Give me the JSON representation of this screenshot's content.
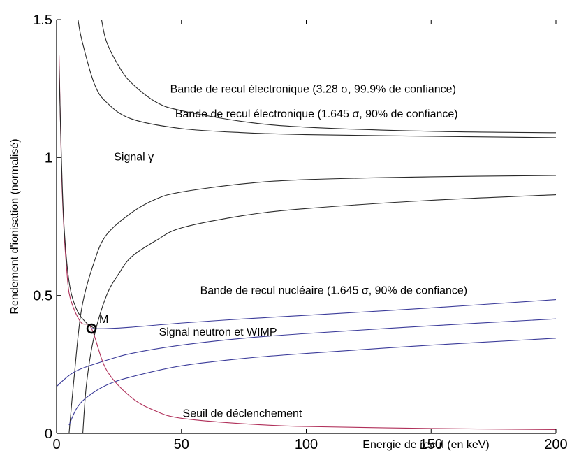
{
  "chart_data": {
    "type": "line",
    "xlabel": "Energie de recul (en keV)",
    "ylabel": "Rendement d'ionisation (normalisé)",
    "xlim": [
      0,
      200
    ],
    "ylim": [
      0,
      1.5
    ],
    "x_ticks": [
      0,
      50,
      100,
      150,
      200
    ],
    "y_ticks": [
      0,
      0.5,
      1,
      1.5
    ],
    "y_tick_labels": [
      "0",
      "0.5",
      "1",
      "1.5"
    ],
    "grid": false,
    "colors": {
      "black": "#2a2a2a",
      "blue": "#3c3c9a",
      "red": "#b0305a"
    },
    "series": [
      {
        "color": "black",
        "points": [
          [
            8.6,
            1.5
          ],
          [
            10,
            1.43
          ],
          [
            15,
            1.27
          ],
          [
            20,
            1.2
          ],
          [
            30,
            1.14
          ],
          [
            50,
            1.105
          ],
          [
            75,
            1.09
          ],
          [
            100,
            1.083
          ],
          [
            150,
            1.077
          ],
          [
            200,
            1.072
          ]
        ]
      },
      {
        "color": "black",
        "points": [
          [
            18,
            1.5
          ],
          [
            20,
            1.42
          ],
          [
            25,
            1.33
          ],
          [
            30,
            1.27
          ],
          [
            40,
            1.2
          ],
          [
            50,
            1.17
          ],
          [
            75,
            1.13
          ],
          [
            100,
            1.11
          ],
          [
            150,
            1.095
          ],
          [
            200,
            1.09
          ]
        ]
      },
      {
        "color": "black",
        "points": [
          [
            5,
            0
          ],
          [
            7,
            0.2
          ],
          [
            10,
            0.45
          ],
          [
            15,
            0.62
          ],
          [
            20,
            0.72
          ],
          [
            30,
            0.8
          ],
          [
            40,
            0.85
          ],
          [
            50,
            0.875
          ],
          [
            75,
            0.905
          ],
          [
            100,
            0.92
          ],
          [
            150,
            0.93
          ],
          [
            200,
            0.935
          ]
        ]
      },
      {
        "color": "black",
        "points": [
          [
            10.5,
            0
          ],
          [
            12,
            0.18
          ],
          [
            15,
            0.35
          ],
          [
            20,
            0.5
          ],
          [
            25,
            0.58
          ],
          [
            30,
            0.64
          ],
          [
            40,
            0.7
          ],
          [
            50,
            0.745
          ],
          [
            75,
            0.79
          ],
          [
            100,
            0.815
          ],
          [
            150,
            0.845
          ],
          [
            200,
            0.865
          ]
        ]
      },
      {
        "color": "blue",
        "points": [
          [
            14,
            0.38
          ],
          [
            20,
            0.38
          ],
          [
            30,
            0.385
          ],
          [
            50,
            0.4
          ],
          [
            75,
            0.415
          ],
          [
            100,
            0.428
          ],
          [
            150,
            0.455
          ],
          [
            200,
            0.485
          ]
        ]
      },
      {
        "color": "blue",
        "points": [
          [
            0,
            0.17
          ],
          [
            5,
            0.21
          ],
          [
            10,
            0.235
          ],
          [
            20,
            0.265
          ],
          [
            30,
            0.29
          ],
          [
            50,
            0.32
          ],
          [
            75,
            0.345
          ],
          [
            100,
            0.362
          ],
          [
            150,
            0.39
          ],
          [
            200,
            0.415
          ]
        ]
      },
      {
        "color": "blue",
        "points": [
          [
            5,
            0.03
          ],
          [
            8,
            0.09
          ],
          [
            12,
            0.13
          ],
          [
            20,
            0.175
          ],
          [
            30,
            0.205
          ],
          [
            50,
            0.245
          ],
          [
            75,
            0.272
          ],
          [
            100,
            0.29
          ],
          [
            150,
            0.32
          ],
          [
            200,
            0.345
          ]
        ]
      },
      {
        "color": "red",
        "points": [
          [
            1,
            1.37
          ],
          [
            2,
            0.95
          ],
          [
            3,
            0.73
          ],
          [
            4,
            0.6
          ],
          [
            5,
            0.51
          ],
          [
            7,
            0.45
          ],
          [
            10,
            0.4
          ],
          [
            14,
            0.38
          ],
          [
            20,
            0.23
          ],
          [
            30,
            0.13
          ],
          [
            40,
            0.08
          ],
          [
            50,
            0.055
          ],
          [
            75,
            0.035
          ],
          [
            100,
            0.025
          ],
          [
            150,
            0.018
          ],
          [
            200,
            0.014
          ]
        ]
      },
      {
        "color": "black",
        "points": [
          [
            1,
            1.33
          ],
          [
            2,
            0.98
          ],
          [
            3,
            0.75
          ],
          [
            5,
            0.55
          ],
          [
            8,
            0.45
          ],
          [
            12,
            0.4
          ],
          [
            15,
            0.382
          ]
        ]
      }
    ],
    "marker": {
      "label": "M",
      "x": 14,
      "y": 0.38
    },
    "annotations": [
      {
        "text": "Bande de recul électronique (3.28 σ, 99.9% de confiance)",
        "x": 45.5,
        "y": 1.235
      },
      {
        "text": "Bande de recul électronique (1.645 σ, 90% de confiance)",
        "x": 47.5,
        "y": 1.145
      },
      {
        "text": "Signal γ",
        "x": 23,
        "y": 0.99
      },
      {
        "text": "Bande de recul nucléaire (1.645 σ, 90% de confiance)",
        "x": 57.5,
        "y": 0.505
      },
      {
        "text": "Signal neutron et WIMP",
        "x": 41,
        "y": 0.355
      },
      {
        "text": "Seuil de déclenchement",
        "x": 50.5,
        "y": 0.06
      }
    ]
  }
}
